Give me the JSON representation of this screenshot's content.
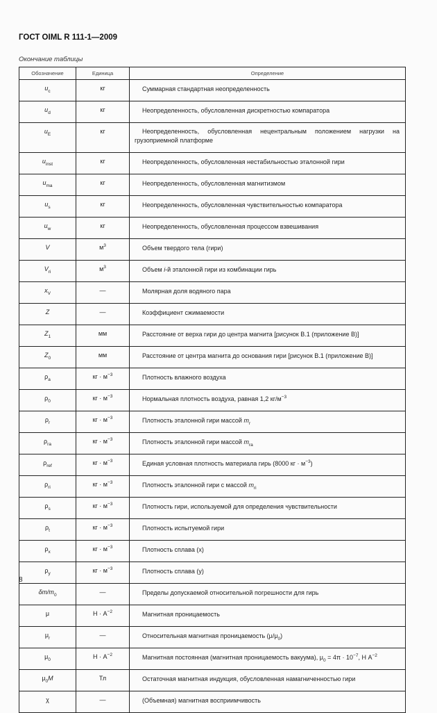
{
  "header": {
    "title": "ГОСТ OIML R 111-1—2009",
    "caption": "Окончание таблицы"
  },
  "table": {
    "columns": [
      "Обозначение",
      "Единица",
      "Определение"
    ],
    "rows": [
      {
        "sym": [
          {
            "t": "u",
            "k": "i"
          },
          {
            "t": "c",
            "k": "sub"
          }
        ],
        "unit": [
          {
            "t": "кг",
            "k": ""
          }
        ],
        "def": [
          {
            "t": "Суммарная стандартная неопределенность",
            "k": ""
          }
        ]
      },
      {
        "sym": [
          {
            "t": "u",
            "k": "i"
          },
          {
            "t": "d",
            "k": "sub"
          }
        ],
        "unit": [
          {
            "t": "кг",
            "k": ""
          }
        ],
        "def": [
          {
            "t": "Неопределенность, обусловленная дискретностью компаратора",
            "k": ""
          }
        ]
      },
      {
        "sym": [
          {
            "t": "u",
            "k": "i"
          },
          {
            "t": "E",
            "k": "sub"
          }
        ],
        "unit": [
          {
            "t": "кг",
            "k": ""
          }
        ],
        "def": [
          {
            "t": "Неопределенность, обусловленная нецентральным положением нагрузки на грузоприемной платформе",
            "k": ""
          }
        ],
        "tall": true
      },
      {
        "sym": [
          {
            "t": "u",
            "k": "i"
          },
          {
            "t": "inst",
            "k": "sub"
          }
        ],
        "unit": [
          {
            "t": "кг",
            "k": ""
          }
        ],
        "def": [
          {
            "t": "Неопределенность, обусловленная нестабильностью эталонной гири",
            "k": ""
          }
        ]
      },
      {
        "sym": [
          {
            "t": "u",
            "k": "i"
          },
          {
            "t": "ma",
            "k": "sub"
          }
        ],
        "unit": [
          {
            "t": "кг",
            "k": ""
          }
        ],
        "def": [
          {
            "t": "Неопределенность, обусловленная магнитизмом",
            "k": ""
          }
        ]
      },
      {
        "sym": [
          {
            "t": "u",
            "k": "i"
          },
          {
            "t": "s",
            "k": "sub"
          }
        ],
        "unit": [
          {
            "t": "кг",
            "k": ""
          }
        ],
        "def": [
          {
            "t": "Неопределенность, обусловленная чувствительностью компаратора",
            "k": ""
          }
        ]
      },
      {
        "sym": [
          {
            "t": "u",
            "k": "i"
          },
          {
            "t": "w",
            "k": "sub"
          }
        ],
        "unit": [
          {
            "t": "кг",
            "k": ""
          }
        ],
        "def": [
          {
            "t": "Неопределенность, обусловленная процессом взвешивания",
            "k": ""
          }
        ]
      },
      {
        "sym": [
          {
            "t": "V",
            "k": "i"
          }
        ],
        "unit": [
          {
            "t": "м",
            "k": ""
          },
          {
            "t": "3",
            "k": "sup"
          }
        ],
        "def": [
          {
            "t": "Объем твердого тела (гири)",
            "k": ""
          }
        ]
      },
      {
        "sym": [
          {
            "t": "V",
            "k": "i"
          },
          {
            "t": "ri",
            "k": "sub"
          }
        ],
        "unit": [
          {
            "t": "м",
            "k": ""
          },
          {
            "t": "3",
            "k": "sup"
          }
        ],
        "def": [
          {
            "t": "Объем ",
            "k": ""
          },
          {
            "t": "i",
            "k": "i"
          },
          {
            "t": "-й эталонной гири из комбинации гирь",
            "k": ""
          }
        ]
      },
      {
        "sym": [
          {
            "t": "x",
            "k": "i"
          },
          {
            "t": "V",
            "k": "sub"
          }
        ],
        "unit": [
          {
            "t": "—",
            "k": ""
          }
        ],
        "def": [
          {
            "t": "Молярная доля водяного пара",
            "k": ""
          }
        ]
      },
      {
        "sym": [
          {
            "t": "Z",
            "k": "i"
          }
        ],
        "unit": [
          {
            "t": "—",
            "k": ""
          }
        ],
        "def": [
          {
            "t": "Коэффициент сжимаемости",
            "k": ""
          }
        ]
      },
      {
        "sym": [
          {
            "t": "Z",
            "k": "i"
          },
          {
            "t": "1",
            "k": "sub"
          }
        ],
        "unit": [
          {
            "t": "мм",
            "k": ""
          }
        ],
        "def": [
          {
            "t": "Расстояние от верха гири до центра магнита [рисунок В.1 (приложение В)]",
            "k": ""
          }
        ]
      },
      {
        "sym": [
          {
            "t": "Z",
            "k": "i"
          },
          {
            "t": "0",
            "k": "sub"
          }
        ],
        "unit": [
          {
            "t": "мм",
            "k": ""
          }
        ],
        "def": [
          {
            "t": "Расстояние от центра магнита до основания гири [рисунок В.1 (приложение В)]",
            "k": ""
          }
        ]
      },
      {
        "sym": [
          {
            "t": "ρ",
            "k": ""
          },
          {
            "t": "a",
            "k": "sub"
          }
        ],
        "unit": [
          {
            "t": "кг · м",
            "k": ""
          },
          {
            "t": "−3",
            "k": "sup"
          }
        ],
        "def": [
          {
            "t": "Плотность влажного воздуха",
            "k": ""
          }
        ]
      },
      {
        "sym": [
          {
            "t": "ρ",
            "k": ""
          },
          {
            "t": "0",
            "k": "sub"
          }
        ],
        "unit": [
          {
            "t": "кг · м",
            "k": ""
          },
          {
            "t": "−3",
            "k": "sup"
          }
        ],
        "def": [
          {
            "t": "Нормальная плотность воздуха, равная 1,2 кг/м",
            "k": ""
          },
          {
            "t": "−3",
            "k": "sup"
          }
        ]
      },
      {
        "sym": [
          {
            "t": "ρ",
            "k": ""
          },
          {
            "t": "r",
            "k": "sub"
          }
        ],
        "unit": [
          {
            "t": "кг · м",
            "k": ""
          },
          {
            "t": "−3",
            "k": "sup"
          }
        ],
        "def": [
          {
            "t": "Плотность эталонной гири массой ",
            "k": ""
          },
          {
            "t": "m",
            "k": "i"
          },
          {
            "t": "r",
            "k": "sub"
          }
        ]
      },
      {
        "sym": [
          {
            "t": "ρ",
            "k": ""
          },
          {
            "t": "ra",
            "k": "sub"
          }
        ],
        "unit": [
          {
            "t": "кг · м",
            "k": ""
          },
          {
            "t": "−3",
            "k": "sup"
          }
        ],
        "def": [
          {
            "t": "Плотность эталонной гири массой ",
            "k": ""
          },
          {
            "t": "m",
            "k": "i"
          },
          {
            "t": "ra",
            "k": "sub"
          }
        ]
      },
      {
        "sym": [
          {
            "t": "ρ",
            "k": ""
          },
          {
            "t": "ref",
            "k": "sub"
          }
        ],
        "unit": [
          {
            "t": "кг · м",
            "k": ""
          },
          {
            "t": "−3",
            "k": "sup"
          }
        ],
        "def": [
          {
            "t": "Единая условная плотность материала гирь (8000 кг · м",
            "k": ""
          },
          {
            "t": "−3",
            "k": "sup"
          },
          {
            "t": ")",
            "k": ""
          }
        ]
      },
      {
        "sym": [
          {
            "t": "ρ",
            "k": ""
          },
          {
            "t": "ri",
            "k": "sub"
          }
        ],
        "unit": [
          {
            "t": "кг · м",
            "k": ""
          },
          {
            "t": "−3",
            "k": "sup"
          }
        ],
        "def": [
          {
            "t": "Плотность эталонной гири с массой ",
            "k": ""
          },
          {
            "t": "m",
            "k": "i"
          },
          {
            "t": "ri",
            "k": "sub"
          }
        ]
      },
      {
        "sym": [
          {
            "t": "ρ",
            "k": ""
          },
          {
            "t": "s",
            "k": "sub"
          }
        ],
        "unit": [
          {
            "t": "кг · м",
            "k": ""
          },
          {
            "t": "−3",
            "k": "sup"
          }
        ],
        "def": [
          {
            "t": "Плотность гири, используемой для определения чувствительности",
            "k": ""
          }
        ]
      },
      {
        "sym": [
          {
            "t": "ρ",
            "k": ""
          },
          {
            "t": "t",
            "k": "sub"
          }
        ],
        "unit": [
          {
            "t": "кг · м",
            "k": ""
          },
          {
            "t": "−3",
            "k": "sup"
          }
        ],
        "def": [
          {
            "t": "Плотность испытуемой гири",
            "k": ""
          }
        ]
      },
      {
        "sym": [
          {
            "t": "ρ",
            "k": ""
          },
          {
            "t": "x",
            "k": "sub"
          }
        ],
        "unit": [
          {
            "t": "кг · м",
            "k": ""
          },
          {
            "t": "−3",
            "k": "sup"
          }
        ],
        "def": [
          {
            "t": "Плотность сплава (x)",
            "k": ""
          }
        ]
      },
      {
        "sym": [
          {
            "t": "ρ",
            "k": ""
          },
          {
            "t": "y",
            "k": "sub"
          }
        ],
        "unit": [
          {
            "t": "кг · м",
            "k": ""
          },
          {
            "t": "−3",
            "k": "sup"
          }
        ],
        "def": [
          {
            "t": "Плотность сплава (y)",
            "k": ""
          }
        ]
      },
      {
        "sym": [
          {
            "t": "δm/m",
            "k": "i"
          },
          {
            "t": "0",
            "k": "sub"
          }
        ],
        "unit": [
          {
            "t": "—",
            "k": ""
          }
        ],
        "def": [
          {
            "t": "Пределы допускаемой относительной погрешности для гирь",
            "k": ""
          }
        ]
      },
      {
        "sym": [
          {
            "t": "μ",
            "k": ""
          }
        ],
        "unit": [
          {
            "t": "Н · А",
            "k": ""
          },
          {
            "t": "−2",
            "k": "sup"
          }
        ],
        "def": [
          {
            "t": "Магнитная проницаемость",
            "k": ""
          }
        ]
      },
      {
        "sym": [
          {
            "t": "μ",
            "k": ""
          },
          {
            "t": "r",
            "k": "sub"
          }
        ],
        "unit": [
          {
            "t": "—",
            "k": ""
          }
        ],
        "def": [
          {
            "t": "Относительная магнитная проницаемость (μ/μ",
            "k": ""
          },
          {
            "t": "0",
            "k": "sub"
          },
          {
            "t": ")",
            "k": ""
          }
        ]
      },
      {
        "sym": [
          {
            "t": "μ",
            "k": ""
          },
          {
            "t": "0",
            "k": "sub"
          }
        ],
        "unit": [
          {
            "t": "Н · А",
            "k": ""
          },
          {
            "t": "−2",
            "k": "sup"
          }
        ],
        "def": [
          {
            "t": "Магнитная постоянная (магнитная проницаемость вакуума), μ",
            "k": ""
          },
          {
            "t": "0",
            "k": "sub"
          },
          {
            "t": " = 4π · 10",
            "k": ""
          },
          {
            "t": "−7",
            "k": "sup"
          },
          {
            "t": ", Н  А",
            "k": ""
          },
          {
            "t": "−2",
            "k": "sup"
          }
        ]
      },
      {
        "sym": [
          {
            "t": "μ",
            "k": ""
          },
          {
            "t": "0",
            "k": "sub"
          },
          {
            "t": "M",
            "k": "i"
          }
        ],
        "unit": [
          {
            "t": "Тл",
            "k": ""
          }
        ],
        "def": [
          {
            "t": "Остаточная магнитная индукция, обусловленная намагниченностью гири",
            "k": ""
          }
        ]
      },
      {
        "sym": [
          {
            "t": "χ",
            "k": ""
          }
        ],
        "unit": [
          {
            "t": "—",
            "k": ""
          }
        ],
        "def": [
          {
            "t": "(Объемная) магнитная восприимчивость",
            "k": ""
          }
        ]
      }
    ]
  },
  "footer": {
    "page_number": "8"
  }
}
